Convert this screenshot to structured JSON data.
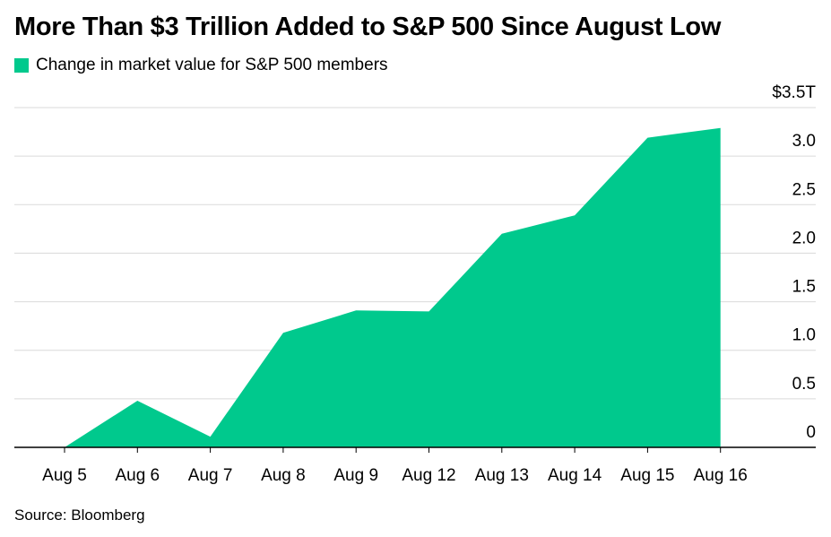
{
  "title": "More Than $3 Trillion Added to S&P 500 Since August Low",
  "source": "Source: Bloomberg",
  "colors": {
    "area": "#00C98D",
    "grid": "#DADADA",
    "axis": "#000000"
  },
  "chart_data": {
    "type": "area",
    "title": "More Than $3 Trillion Added to S&P 500 Since August Low",
    "categories": [
      "Aug 5",
      "Aug 6",
      "Aug 7",
      "Aug 8",
      "Aug 9",
      "Aug 12",
      "Aug 13",
      "Aug 14",
      "Aug 15",
      "Aug 16"
    ],
    "series": [
      {
        "name": "Change in market value for S&P 500 members",
        "values": [
          0.0,
          0.48,
          0.11,
          1.18,
          1.41,
          1.4,
          2.2,
          2.39,
          3.19,
          3.29
        ]
      }
    ],
    "ylim": [
      0,
      3.5
    ],
    "yticks": [
      0,
      0.5,
      1.0,
      1.5,
      2.0,
      2.5,
      3.0,
      3.5
    ],
    "ytick_labels": [
      "0",
      "0.5",
      "1.0",
      "1.5",
      "2.0",
      "2.5",
      "3.0",
      "$3.5T"
    ],
    "grid": true,
    "y_axis_side": "right",
    "legend_position": "top-left"
  }
}
